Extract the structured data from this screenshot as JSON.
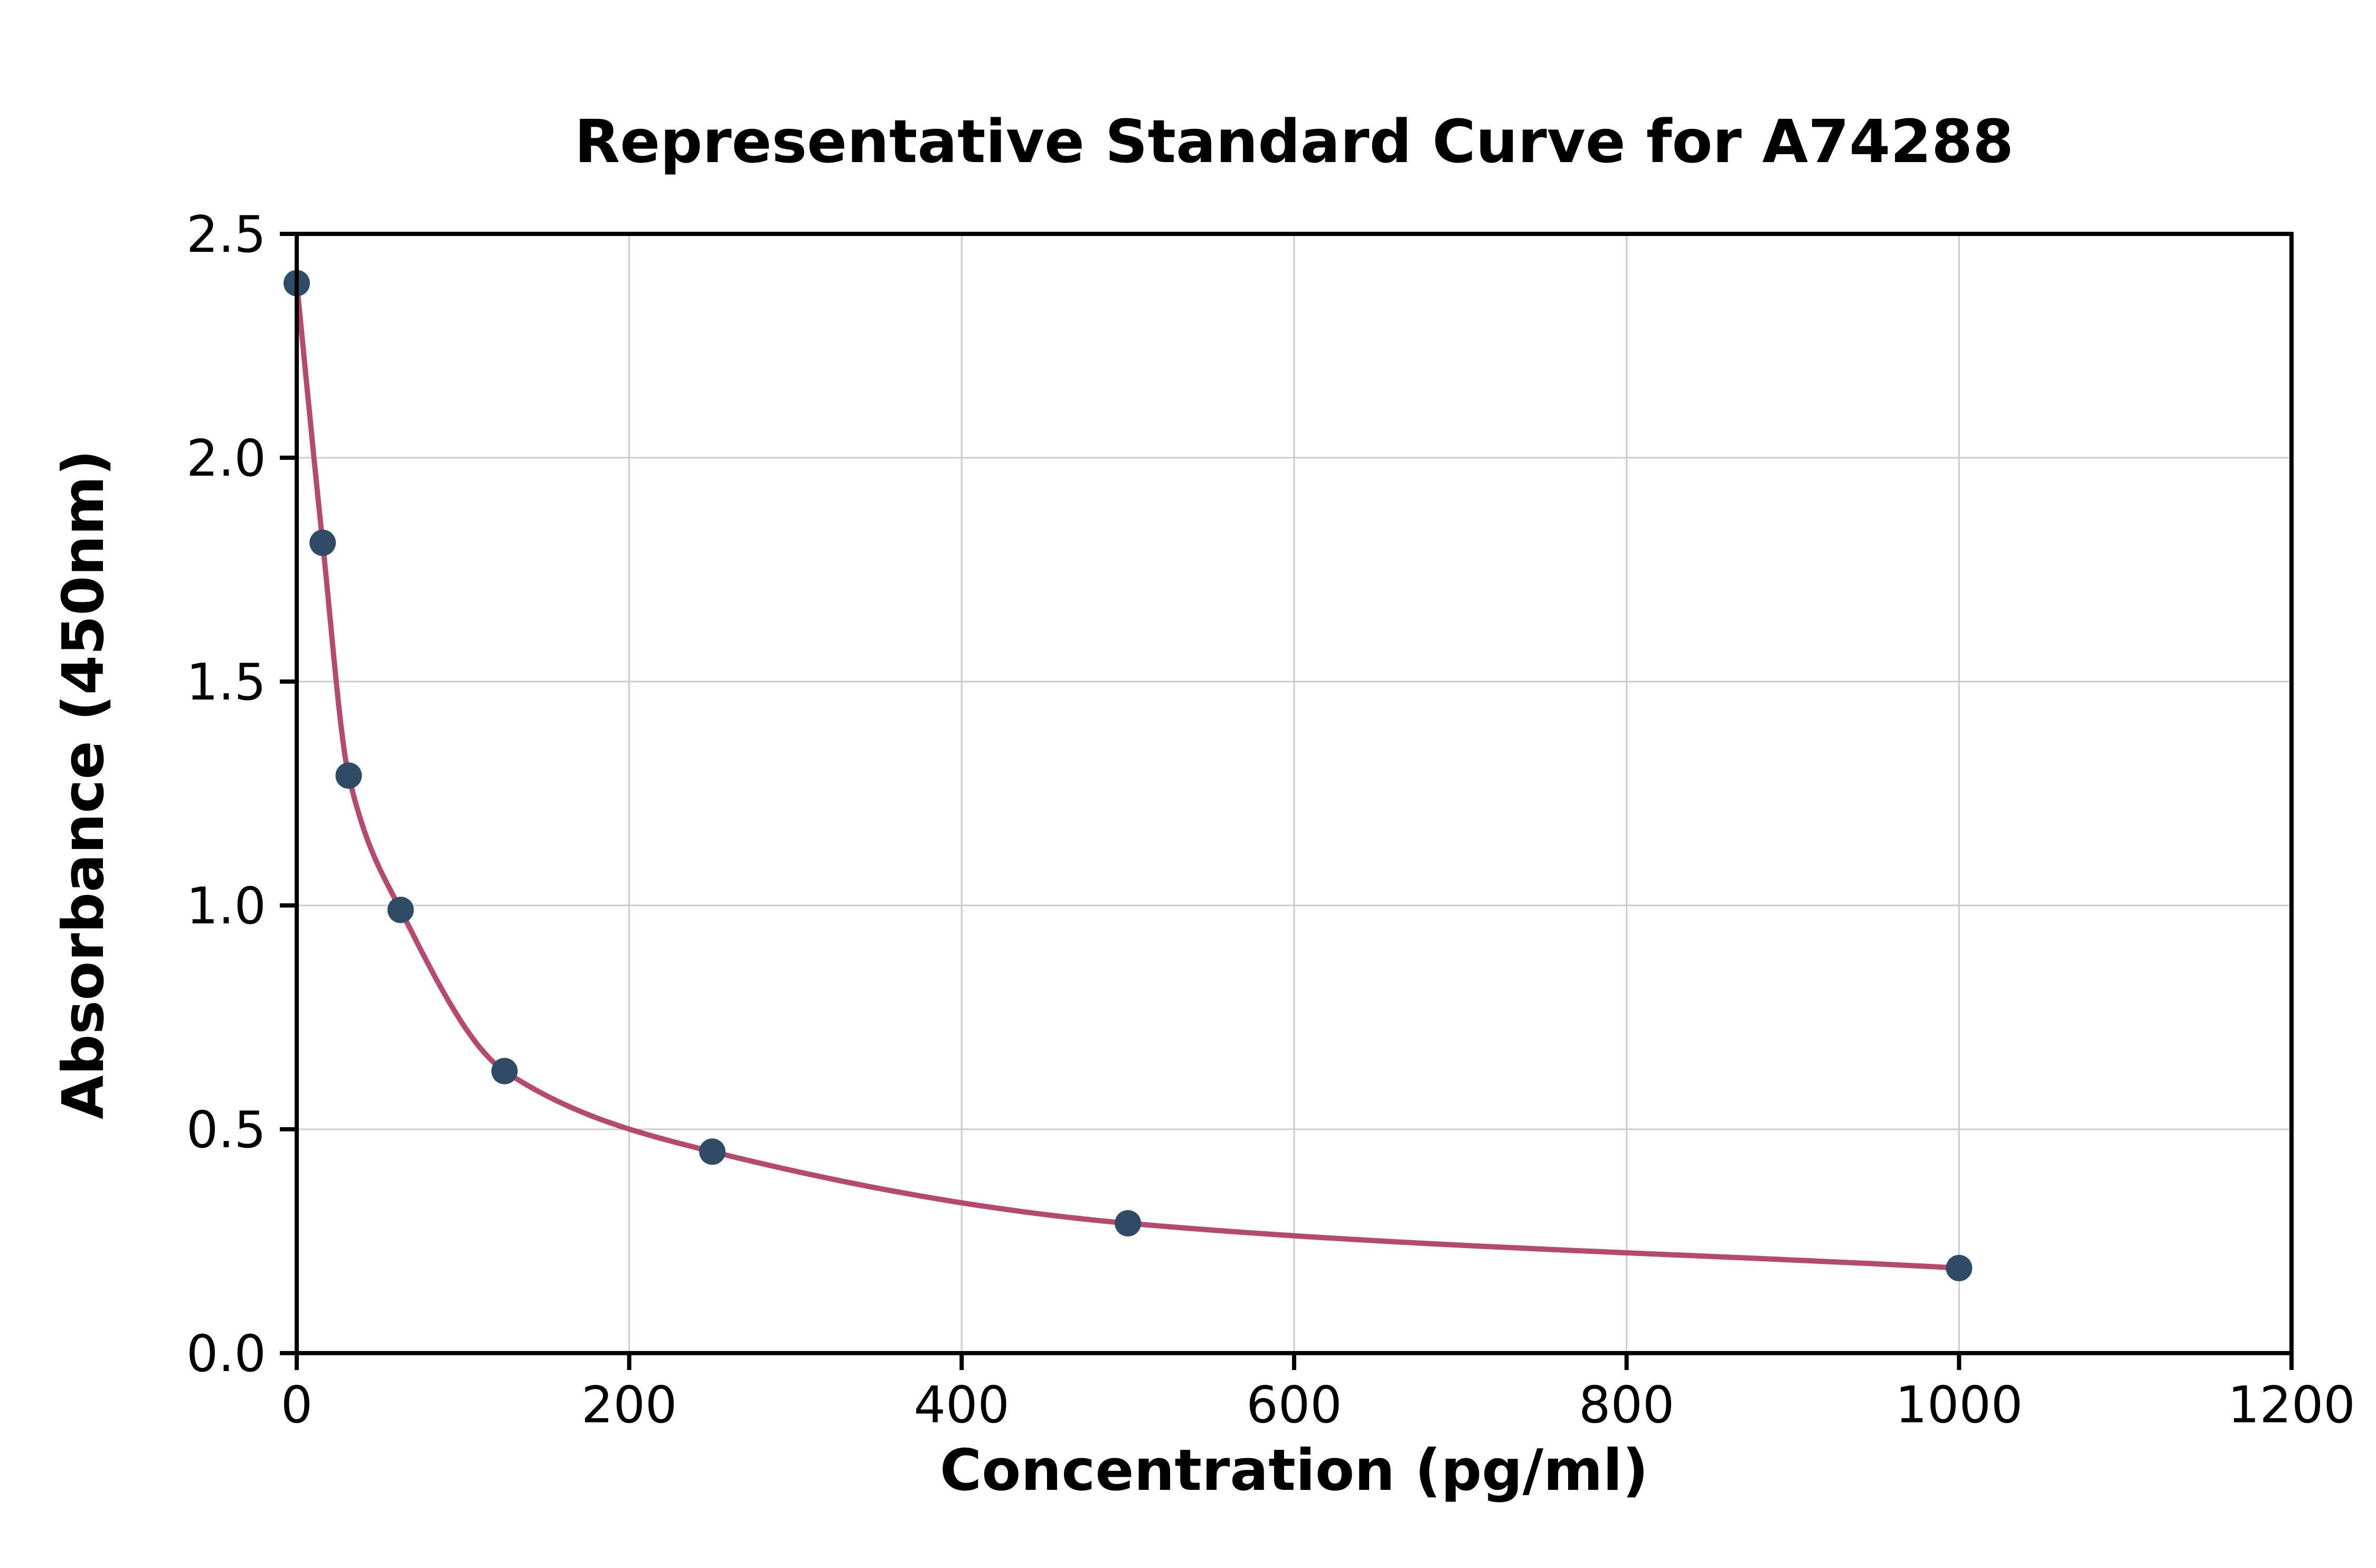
{
  "chart_data": {
    "type": "scatter",
    "title": "Representative Standard Curve for A74288",
    "xlabel": "Concentration (pg/ml)",
    "ylabel": "Absorbance (450nm)",
    "xlim": [
      0,
      1200
    ],
    "ylim": [
      0,
      2.5
    ],
    "xticks": [
      0,
      200,
      400,
      600,
      800,
      1000,
      1200
    ],
    "yticks": [
      0,
      0.5,
      1,
      1.5,
      2,
      2.5
    ],
    "xtick_labels": [
      "0",
      "200",
      "400",
      "600",
      "800",
      "1000",
      "1200"
    ],
    "ytick_labels": [
      "0.0",
      "0.5",
      "1.0",
      "1.5",
      "2.0",
      "2.5"
    ],
    "grid": true,
    "legend": "none",
    "fit_line": true,
    "x": [
      0,
      15.6,
      31.25,
      62.5,
      125,
      250,
      500,
      1000
    ],
    "y": [
      2.39,
      1.81,
      1.29,
      0.99,
      0.63,
      0.45,
      0.29,
      0.19
    ],
    "colors": {
      "marker": "#2f4b66",
      "curve": "#b5496e",
      "grid": "#cccccc",
      "axis": "#000000"
    }
  }
}
